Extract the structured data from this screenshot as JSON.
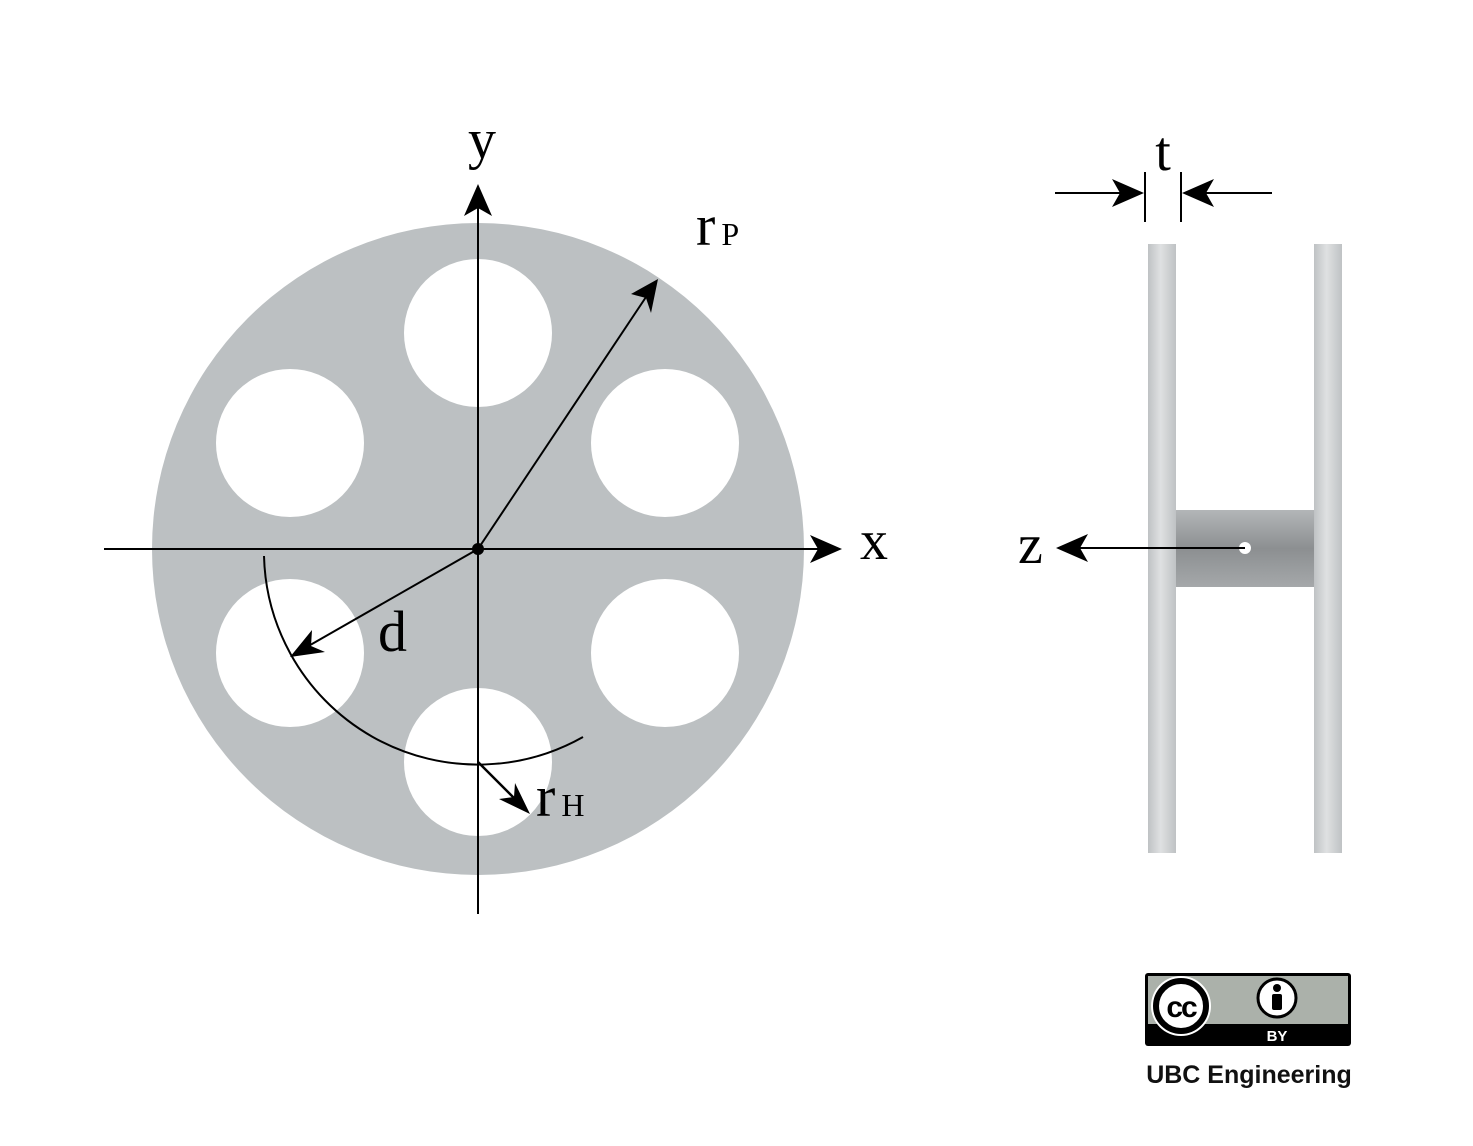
{
  "labels": {
    "y_axis": "y",
    "x_axis": "x",
    "z_axis": "z",
    "r": "r",
    "p_sub": "P",
    "h_sub": "H",
    "d": "d",
    "t": "t"
  },
  "license": {
    "cc": "cc",
    "by": "BY",
    "credit": "UBC Engineering"
  },
  "colors": {
    "plate": "#bcc0c2",
    "hole": "#ffffff",
    "line": "#000000",
    "shaft_dark": "#8a8d8f",
    "shaft_light": "#c9cccd"
  },
  "icons": [
    "creative-commons-icon",
    "attribution-person-icon"
  ]
}
